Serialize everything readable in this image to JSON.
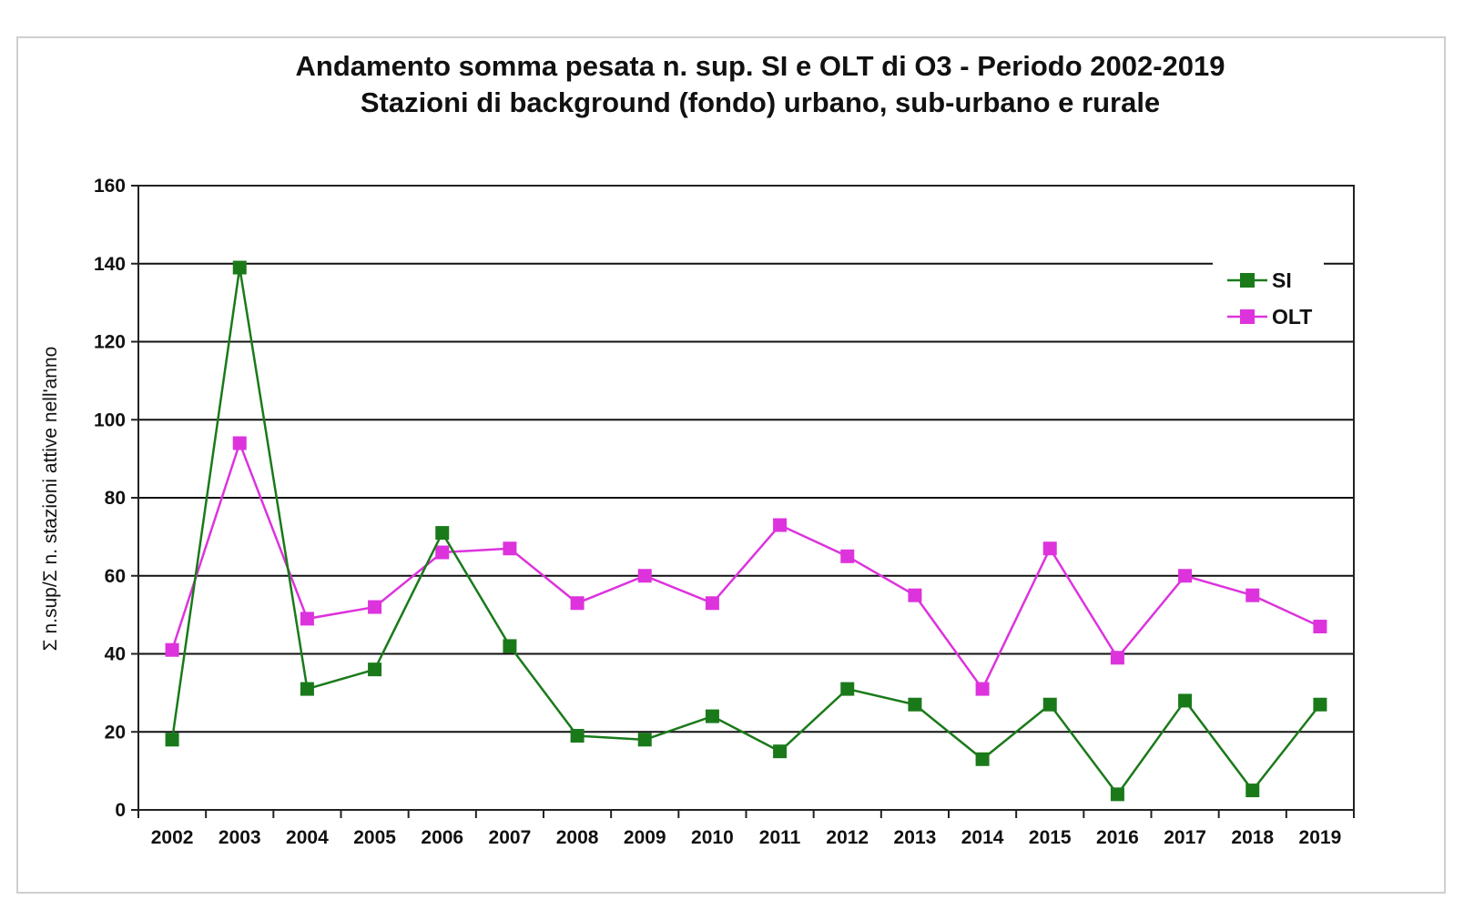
{
  "chart_data": {
    "type": "line",
    "title": "Andamento somma pesata n. sup. SI e OLT di O3 - Periodo 2002-2019",
    "subtitle": "Stazioni di background (fondo) urbano, sub-urbano e rurale",
    "xlabel": "",
    "ylabel": "Σ n.sup/Σ n. stazioni attive nell'anno",
    "ylim": [
      0,
      160
    ],
    "yticks": [
      0,
      20,
      40,
      60,
      80,
      100,
      120,
      140,
      160
    ],
    "grid": true,
    "legend_position": "top-right",
    "categories": [
      "2002",
      "2003",
      "2004",
      "2005",
      "2006",
      "2007",
      "2008",
      "2009",
      "2010",
      "2011",
      "2012",
      "2013",
      "2014",
      "2015",
      "2016",
      "2017",
      "2018",
      "2019"
    ],
    "series": [
      {
        "name": "SI",
        "color": "#1a7a1a",
        "values": [
          18,
          139,
          31,
          36,
          71,
          42,
          19,
          18,
          24,
          15,
          31,
          27,
          13,
          27,
          4,
          28,
          5,
          27
        ]
      },
      {
        "name": "OLT",
        "color": "#dd33dd",
        "values": [
          41,
          94,
          49,
          52,
          66,
          67,
          53,
          60,
          53,
          73,
          65,
          55,
          31,
          67,
          39,
          60,
          55,
          47
        ]
      }
    ]
  }
}
